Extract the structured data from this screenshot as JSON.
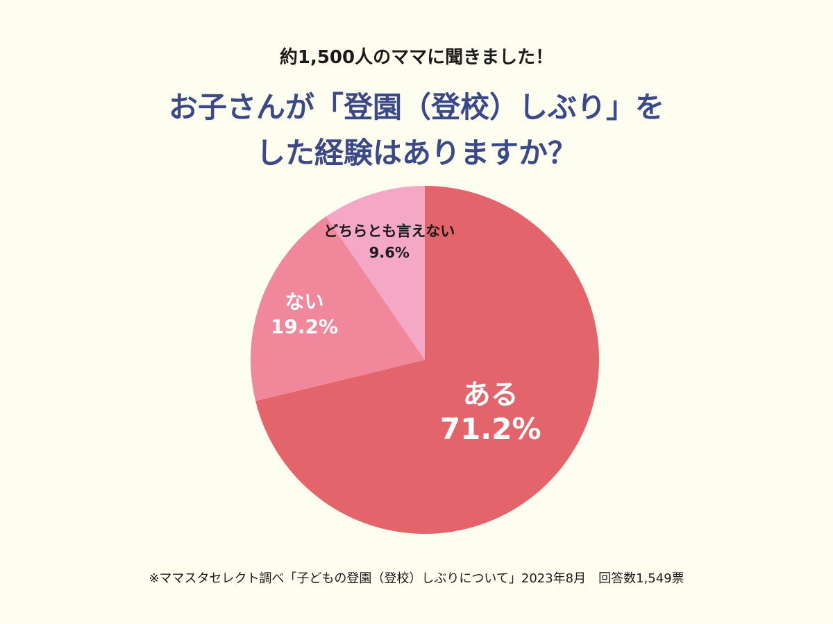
{
  "header": {
    "subtitle": "約1,500人のママに聞きました！",
    "title_line1": "お子さんが「登園（登校）しぶり」を",
    "title_line2": "した経験はありますか？"
  },
  "chart_data": {
    "type": "pie",
    "slices": [
      {
        "name": "ある",
        "value": 71.2,
        "label": "71.2%",
        "color": "#e3646a",
        "text_color": "#ffffff"
      },
      {
        "name": "ない",
        "value": 19.2,
        "label": "19.2%",
        "color": "#f0879b",
        "text_color": "#ffffff"
      },
      {
        "name": "どちらとも言えない",
        "value": 9.6,
        "label": "9.6%",
        "color": "#f5a8c6",
        "text_color": "#1a1a1a"
      }
    ],
    "start_angle": "12 o'clock",
    "direction": "clockwise",
    "legend": "none"
  },
  "footer": {
    "note": "※ママスタセレクト調べ「子どもの登園（登校）しぶりについて」2023年8月　回答数1,549票"
  }
}
